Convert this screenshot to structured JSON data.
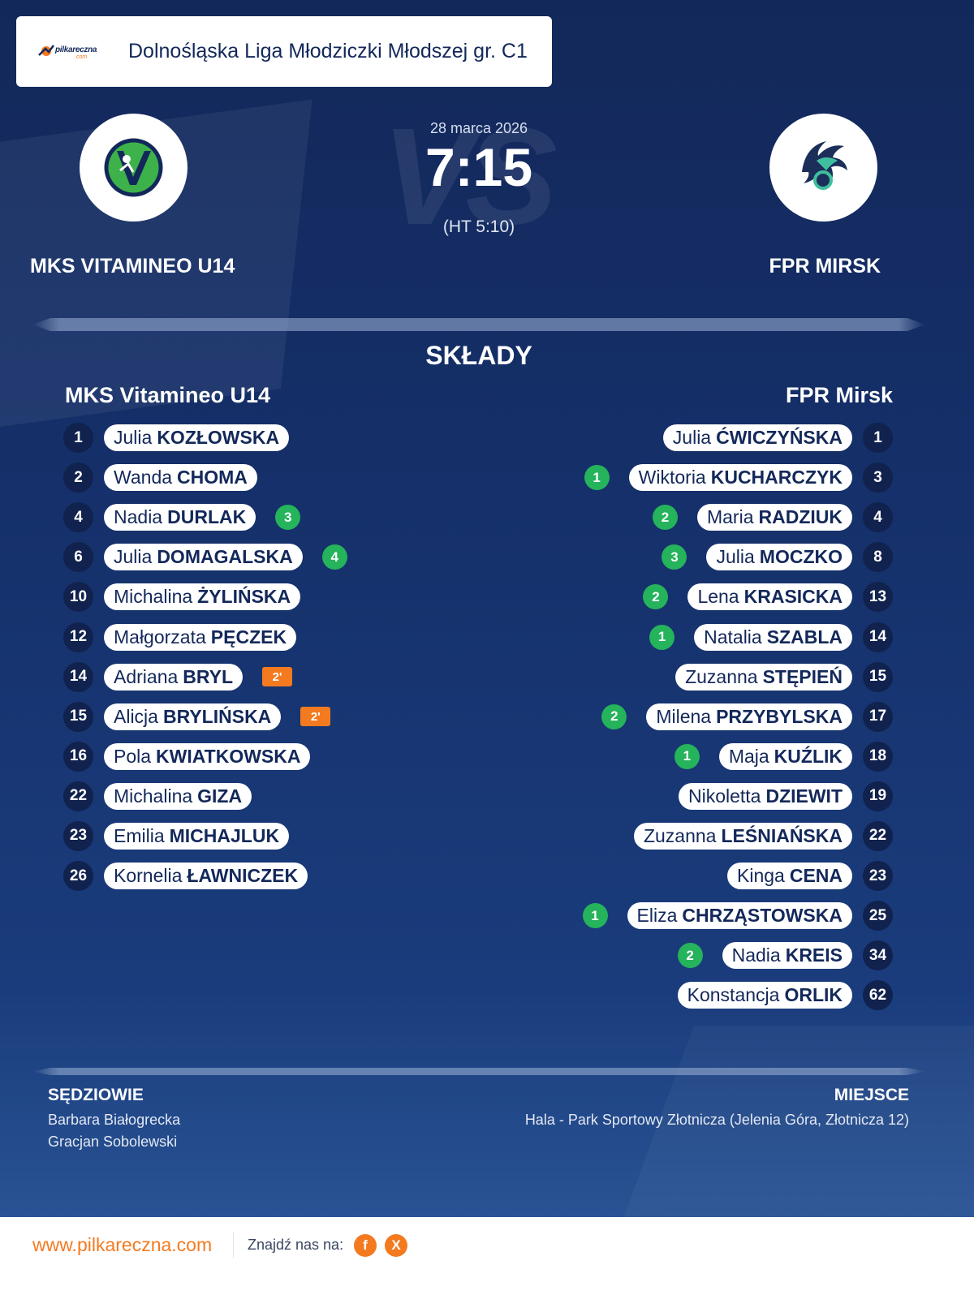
{
  "header": {
    "logo_text": "pilkareczna",
    "logo_sub": ".com",
    "title": "Dolnośląska Liga Młodziczki Młodszej gr. C1"
  },
  "match": {
    "watermark": "VS",
    "date": "28 marca 2026",
    "score": "7:15",
    "halftime": "(HT 5:10)",
    "home_name": "MKS VITAMINEO U14",
    "away_name": "FPR MIRSK"
  },
  "lineups": {
    "title": "SKŁADY",
    "home_title": "MKS Vitamineo U14",
    "away_title": "FPR Mirsk",
    "home": [
      {
        "num": "1",
        "first": "Julia",
        "last": "KOZŁOWSKA",
        "goals": "",
        "susp": ""
      },
      {
        "num": "2",
        "first": "Wanda",
        "last": "CHOMA",
        "goals": "",
        "susp": ""
      },
      {
        "num": "4",
        "first": "Nadia",
        "last": "DURLAK",
        "goals": "3",
        "susp": ""
      },
      {
        "num": "6",
        "first": "Julia",
        "last": "DOMAGALSKA",
        "goals": "4",
        "susp": ""
      },
      {
        "num": "10",
        "first": "Michalina",
        "last": "ŻYLIŃSKA",
        "goals": "",
        "susp": ""
      },
      {
        "num": "12",
        "first": "Małgorzata",
        "last": "PĘCZEK",
        "goals": "",
        "susp": ""
      },
      {
        "num": "14",
        "first": "Adriana",
        "last": "BRYL",
        "goals": "",
        "susp": "2'"
      },
      {
        "num": "15",
        "first": "Alicja",
        "last": "BRYLIŃSKA",
        "goals": "",
        "susp": "2'"
      },
      {
        "num": "16",
        "first": "Pola",
        "last": "KWIATKOWSKA",
        "goals": "",
        "susp": ""
      },
      {
        "num": "22",
        "first": "Michalina",
        "last": "GIZA",
        "goals": "",
        "susp": ""
      },
      {
        "num": "23",
        "first": "Emilia",
        "last": "MICHAJLUK",
        "goals": "",
        "susp": ""
      },
      {
        "num": "26",
        "first": "Kornelia",
        "last": "ŁAWNICZEK",
        "goals": "",
        "susp": ""
      }
    ],
    "away": [
      {
        "num": "1",
        "first": "Julia",
        "last": "ĆWICZYŃSKA",
        "goals": ""
      },
      {
        "num": "3",
        "first": "Wiktoria",
        "last": "KUCHARCZYK",
        "goals": "1"
      },
      {
        "num": "4",
        "first": "Maria",
        "last": "RADZIUK",
        "goals": "2"
      },
      {
        "num": "8",
        "first": "Julia",
        "last": "MOCZKO",
        "goals": "3"
      },
      {
        "num": "13",
        "first": "Lena",
        "last": "KRASICKA",
        "goals": "2"
      },
      {
        "num": "14",
        "first": "Natalia",
        "last": "SZABLA",
        "goals": "1"
      },
      {
        "num": "15",
        "first": "Zuzanna",
        "last": "STĘPIEŃ",
        "goals": ""
      },
      {
        "num": "17",
        "first": "Milena",
        "last": "PRZYBYLSKA",
        "goals": "2"
      },
      {
        "num": "18",
        "first": "Maja",
        "last": "KUŹLIK",
        "goals": "1"
      },
      {
        "num": "19",
        "first": "Nikoletta",
        "last": "DZIEWIT",
        "goals": ""
      },
      {
        "num": "22",
        "first": "Zuzanna",
        "last": "LEŚNIAŃSKA",
        "goals": ""
      },
      {
        "num": "23",
        "first": "Kinga",
        "last": "CENA",
        "goals": ""
      },
      {
        "num": "25",
        "first": "Eliza",
        "last": "CHRZĄSTOWSKA",
        "goals": "1"
      },
      {
        "num": "34",
        "first": "Nadia",
        "last": "KREIS",
        "goals": "2"
      },
      {
        "num": "62",
        "first": "Konstancja",
        "last": "ORLIK",
        "goals": ""
      }
    ]
  },
  "footer_info": {
    "referees_label": "SĘDZIOWIE",
    "referee_1": "Barbara Białogrecka",
    "referee_2": "Gracjan Sobolewski",
    "venue_label": "MIEJSCE",
    "venue": "Hala - Park Sportowy Złotnicza (Jelenia Góra, Złotnicza 12)"
  },
  "bottom": {
    "site": "www.pilkareczna.com",
    "find_us": "Znajdź nas na:",
    "facebook_label": "f",
    "x_label": "X",
    "facebook_icon": "facebook-icon",
    "x_icon": "x-icon"
  },
  "colors": {
    "navy": "#13285a",
    "accent_orange": "#f47a20",
    "goal_green": "#25b35b"
  }
}
